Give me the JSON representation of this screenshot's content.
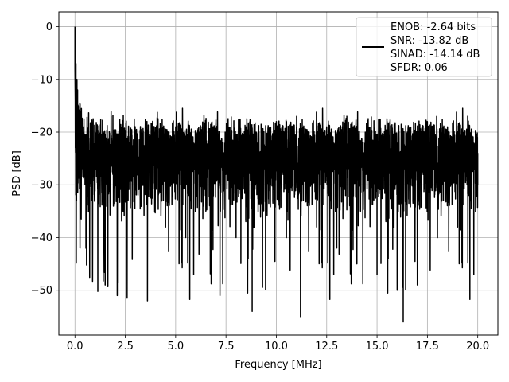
{
  "chart_data": {
    "type": "line",
    "title": "",
    "xlabel": "Frequency [MHz]",
    "ylabel": "PSD [dB]",
    "xlim": [
      -0.8,
      21.0
    ],
    "ylim": [
      -58.5,
      2.8
    ],
    "xticks": [
      0.0,
      2.5,
      5.0,
      7.5,
      10.0,
      12.5,
      15.0,
      17.5,
      20.0
    ],
    "xtick_labels": [
      "0.0",
      "2.5",
      "5.0",
      "7.5",
      "10.0",
      "12.5",
      "15.0",
      "17.5",
      "20.0"
    ],
    "yticks": [
      0,
      -10,
      -20,
      -30,
      -40,
      -50
    ],
    "ytick_labels": [
      "0",
      "−10",
      "−20",
      "−30",
      "−40",
      "−50"
    ],
    "grid": true,
    "legend_position": "top-right",
    "legend_entries": [
      "ENOB: -2.64 bits",
      "SNR: -13.82 dB",
      "SINAD: -14.14 dB",
      "SFDR: 0.06"
    ],
    "series_color": "#000000",
    "series": [
      {
        "x": [
          0.0,
          0.02,
          0.05,
          0.08,
          0.1,
          0.13,
          0.16,
          0.2,
          0.25,
          0.3,
          0.35,
          0.4,
          0.5,
          0.6,
          0.75,
          1.0,
          1.5,
          1.8,
          2.1,
          2.2,
          2.5,
          3.0,
          3.6,
          4.0,
          4.5,
          5.0,
          5.5,
          6.0,
          6.5,
          7.0,
          7.2,
          7.5,
          8.0,
          8.5,
          8.8,
          9.0,
          9.5,
          10.0,
          10.5,
          11.0,
          11.2,
          11.5,
          12.0,
          12.5,
          13.0,
          13.5,
          14.0,
          14.5,
          15.0,
          15.5,
          16.0,
          16.3,
          16.5,
          17.0,
          17.5,
          18.0,
          18.5,
          19.0,
          19.5,
          20.0
        ],
        "y": [
          0,
          -23,
          -7,
          -33,
          -10,
          -12,
          -15,
          -20,
          -42,
          -18,
          -25,
          -22,
          -30,
          -28,
          -26,
          -24,
          -49,
          -17,
          -51,
          -20,
          -27,
          -31,
          -52,
          -20,
          -38,
          -19,
          -40,
          -22,
          -35,
          -18,
          -51,
          -21,
          -40,
          -19,
          -54,
          -20,
          -35,
          -18,
          -40,
          -19,
          -55,
          -20,
          -38,
          -19,
          -42,
          -17,
          -45,
          -19,
          -47,
          -18,
          -50,
          -56,
          -20,
          -49,
          -18,
          -40,
          -19,
          -38,
          -17,
          -30
        ]
      }
    ]
  }
}
